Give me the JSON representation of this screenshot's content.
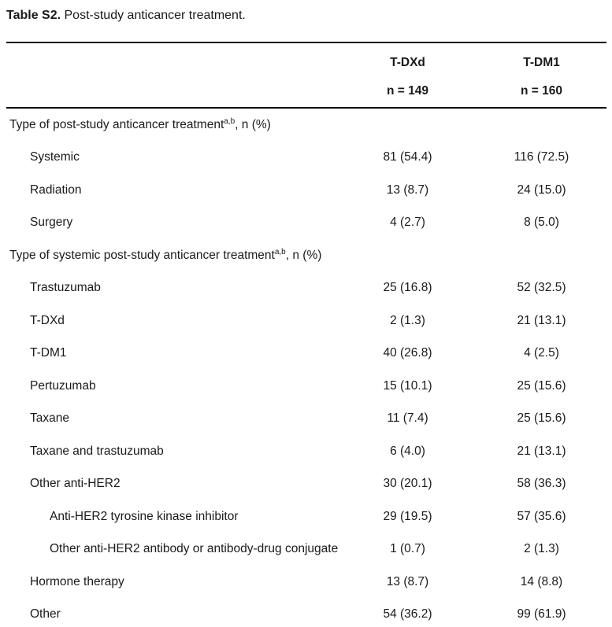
{
  "title": {
    "label": "Table S2.",
    "caption": " Post-study anticancer treatment."
  },
  "table": {
    "columns": [
      {
        "name": "T-DXd",
        "n": "n = 149"
      },
      {
        "name": "T-DM1",
        "n": "n = 160"
      }
    ],
    "rows": [
      {
        "label": "Type of post-study anticancer treatment",
        "sup": "a,b",
        "suffix": ", n (%)",
        "indent": 0,
        "values": [
          "",
          ""
        ]
      },
      {
        "label": "Systemic",
        "indent": 1,
        "values": [
          "81 (54.4)",
          "116 (72.5)"
        ]
      },
      {
        "label": "Radiation",
        "indent": 1,
        "values": [
          "13 (8.7)",
          "24 (15.0)"
        ]
      },
      {
        "label": "Surgery",
        "indent": 1,
        "values": [
          "4 (2.7)",
          "8 (5.0)"
        ]
      },
      {
        "label": "Type of systemic post-study anticancer treatment",
        "sup": "a,b",
        "suffix": ", n (%)",
        "indent": 0,
        "values": [
          "",
          ""
        ]
      },
      {
        "label": "Trastuzumab",
        "indent": 1,
        "values": [
          "25 (16.8)",
          "52 (32.5)"
        ]
      },
      {
        "label": "T-DXd",
        "indent": 1,
        "values": [
          "2 (1.3)",
          "21 (13.1)"
        ]
      },
      {
        "label": "T-DM1",
        "indent": 1,
        "values": [
          "40 (26.8)",
          "4 (2.5)"
        ]
      },
      {
        "label": "Pertuzumab",
        "indent": 1,
        "values": [
          "15 (10.1)",
          "25 (15.6)"
        ]
      },
      {
        "label": "Taxane",
        "indent": 1,
        "values": [
          "11 (7.4)",
          "25 (15.6)"
        ]
      },
      {
        "label": "Taxane and trastuzumab",
        "indent": 1,
        "values": [
          "6 (4.0)",
          "21 (13.1)"
        ]
      },
      {
        "label": "Other anti-HER2",
        "indent": 1,
        "values": [
          "30 (20.1)",
          "58 (36.3)"
        ]
      },
      {
        "label": "Anti-HER2 tyrosine kinase inhibitor",
        "indent": 2,
        "values": [
          "29 (19.5)",
          "57 (35.6)"
        ]
      },
      {
        "label": "Other anti-HER2 antibody or antibody-drug conjugate",
        "indent": 2,
        "values": [
          "1 (0.7)",
          "2 (1.3)"
        ]
      },
      {
        "label": "Hormone therapy",
        "indent": 1,
        "values": [
          "13 (8.7)",
          "14 (8.8)"
        ]
      },
      {
        "label": "Other",
        "indent": 1,
        "values": [
          "54 (36.2)",
          "99 (61.9)"
        ]
      }
    ]
  },
  "colors": {
    "text": "#1a1a1a",
    "rule": "#000000",
    "background": "#ffffff"
  }
}
